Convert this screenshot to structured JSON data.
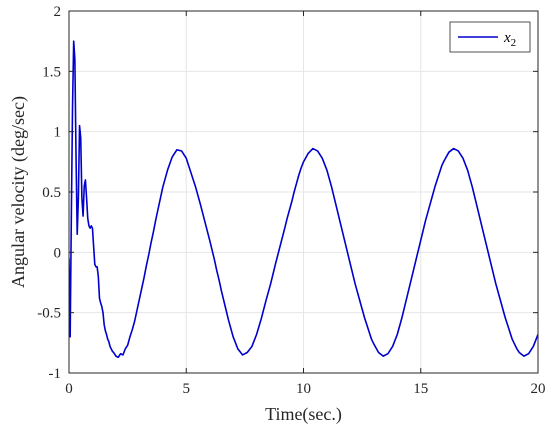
{
  "chart_data": {
    "type": "line",
    "xlabel": "Time(sec.)",
    "ylabel": "Angular velocity (deg/sec)",
    "xlim": [
      0,
      20
    ],
    "ylim": [
      -1,
      2
    ],
    "xticks": [
      0,
      5,
      10,
      15,
      20
    ],
    "yticks": [
      -1,
      -0.5,
      0,
      0.5,
      1,
      1.5,
      2
    ],
    "xtick_labels": [
      "0",
      "5",
      "10",
      "15",
      "20"
    ],
    "ytick_labels": [
      "-1",
      "-0.5",
      "0",
      "0.5",
      "1",
      "1.5",
      "2"
    ],
    "grid": true,
    "legend_position": "top-right",
    "series": [
      {
        "name": "x",
        "name_subscript": "2",
        "color": "#0000cc",
        "x": [
          0,
          0.05,
          0.1,
          0.15,
          0.2,
          0.25,
          0.3,
          0.35,
          0.4,
          0.45,
          0.5,
          0.55,
          0.6,
          0.65,
          0.7,
          0.75,
          0.8,
          0.85,
          0.9,
          0.95,
          1.0,
          1.05,
          1.1,
          1.15,
          1.2,
          1.25,
          1.3,
          1.35,
          1.4,
          1.45,
          1.5,
          1.55,
          1.6,
          1.65,
          1.7,
          1.75,
          1.8,
          1.85,
          1.9,
          2.0,
          2.1,
          2.2,
          2.3,
          2.4,
          2.5,
          2.6,
          2.7,
          2.8,
          2.9,
          3.0,
          3.1,
          3.2,
          3.3,
          3.4,
          3.5,
          3.6,
          3.7,
          3.8,
          3.9,
          4.0,
          4.2,
          4.4,
          4.6,
          4.8,
          5.0,
          5.2,
          5.4,
          5.6,
          5.8,
          6.0,
          6.1,
          6.2,
          6.3,
          6.4,
          6.5,
          6.6,
          6.7,
          6.8,
          7.0,
          7.2,
          7.4,
          7.6,
          7.8,
          8.0,
          8.2,
          8.4,
          8.6,
          8.8,
          9.0,
          9.2,
          9.3,
          9.4,
          9.5,
          9.6,
          9.7,
          9.8,
          9.9,
          10.0,
          10.2,
          10.4,
          10.6,
          10.8,
          11.0,
          11.2,
          11.4,
          11.6,
          11.8,
          12.0,
          12.2,
          12.4,
          12.5,
          12.6,
          12.7,
          12.8,
          12.9,
          13.0,
          13.2,
          13.4,
          13.6,
          13.8,
          14.0,
          14.2,
          14.4,
          14.6,
          14.8,
          15.0,
          15.2,
          15.4,
          15.5,
          15.6,
          15.7,
          15.8,
          15.9,
          16.0,
          16.2,
          16.4,
          16.6,
          16.8,
          17.0,
          17.2,
          17.4,
          17.6,
          17.8,
          18.0,
          18.2,
          18.4,
          18.6,
          18.7,
          18.8,
          18.9,
          19.0,
          19.1,
          19.2,
          19.4,
          19.6,
          19.8,
          20.0
        ],
        "y": [
          -0.05,
          -0.7,
          0.3,
          1.2,
          1.75,
          1.6,
          0.8,
          0.15,
          0.45,
          1.05,
          0.95,
          0.45,
          0.3,
          0.55,
          0.6,
          0.45,
          0.28,
          0.22,
          0.2,
          0.22,
          0.2,
          0.05,
          -0.1,
          -0.12,
          -0.12,
          -0.2,
          -0.38,
          -0.42,
          -0.45,
          -0.5,
          -0.6,
          -0.65,
          -0.68,
          -0.72,
          -0.74,
          -0.78,
          -0.8,
          -0.82,
          -0.83,
          -0.86,
          -0.87,
          -0.84,
          -0.85,
          -0.8,
          -0.77,
          -0.7,
          -0.64,
          -0.57,
          -0.48,
          -0.39,
          -0.3,
          -0.21,
          -0.11,
          -0.02,
          0.08,
          0.17,
          0.27,
          0.36,
          0.45,
          0.54,
          0.68,
          0.79,
          0.85,
          0.84,
          0.78,
          0.66,
          0.54,
          0.4,
          0.25,
          0.1,
          0.02,
          -0.06,
          -0.15,
          -0.23,
          -0.32,
          -0.4,
          -0.48,
          -0.56,
          -0.7,
          -0.8,
          -0.85,
          -0.83,
          -0.78,
          -0.68,
          -0.55,
          -0.4,
          -0.26,
          -0.1,
          0.05,
          0.2,
          0.28,
          0.35,
          0.42,
          0.5,
          0.57,
          0.64,
          0.7,
          0.75,
          0.82,
          0.86,
          0.84,
          0.78,
          0.68,
          0.54,
          0.38,
          0.22,
          0.06,
          -0.1,
          -0.26,
          -0.4,
          -0.47,
          -0.54,
          -0.6,
          -0.66,
          -0.72,
          -0.76,
          -0.83,
          -0.86,
          -0.84,
          -0.78,
          -0.68,
          -0.54,
          -0.38,
          -0.22,
          -0.06,
          0.1,
          0.26,
          0.4,
          0.47,
          0.54,
          0.6,
          0.66,
          0.72,
          0.76,
          0.83,
          0.86,
          0.84,
          0.78,
          0.68,
          0.54,
          0.38,
          0.22,
          0.06,
          -0.1,
          -0.26,
          -0.4,
          -0.54,
          -0.6,
          -0.66,
          -0.72,
          -0.76,
          -0.8,
          -0.83,
          -0.86,
          -0.84,
          -0.78,
          -0.68
        ],
        "note_y_continues_as_sine": false
      }
    ]
  }
}
